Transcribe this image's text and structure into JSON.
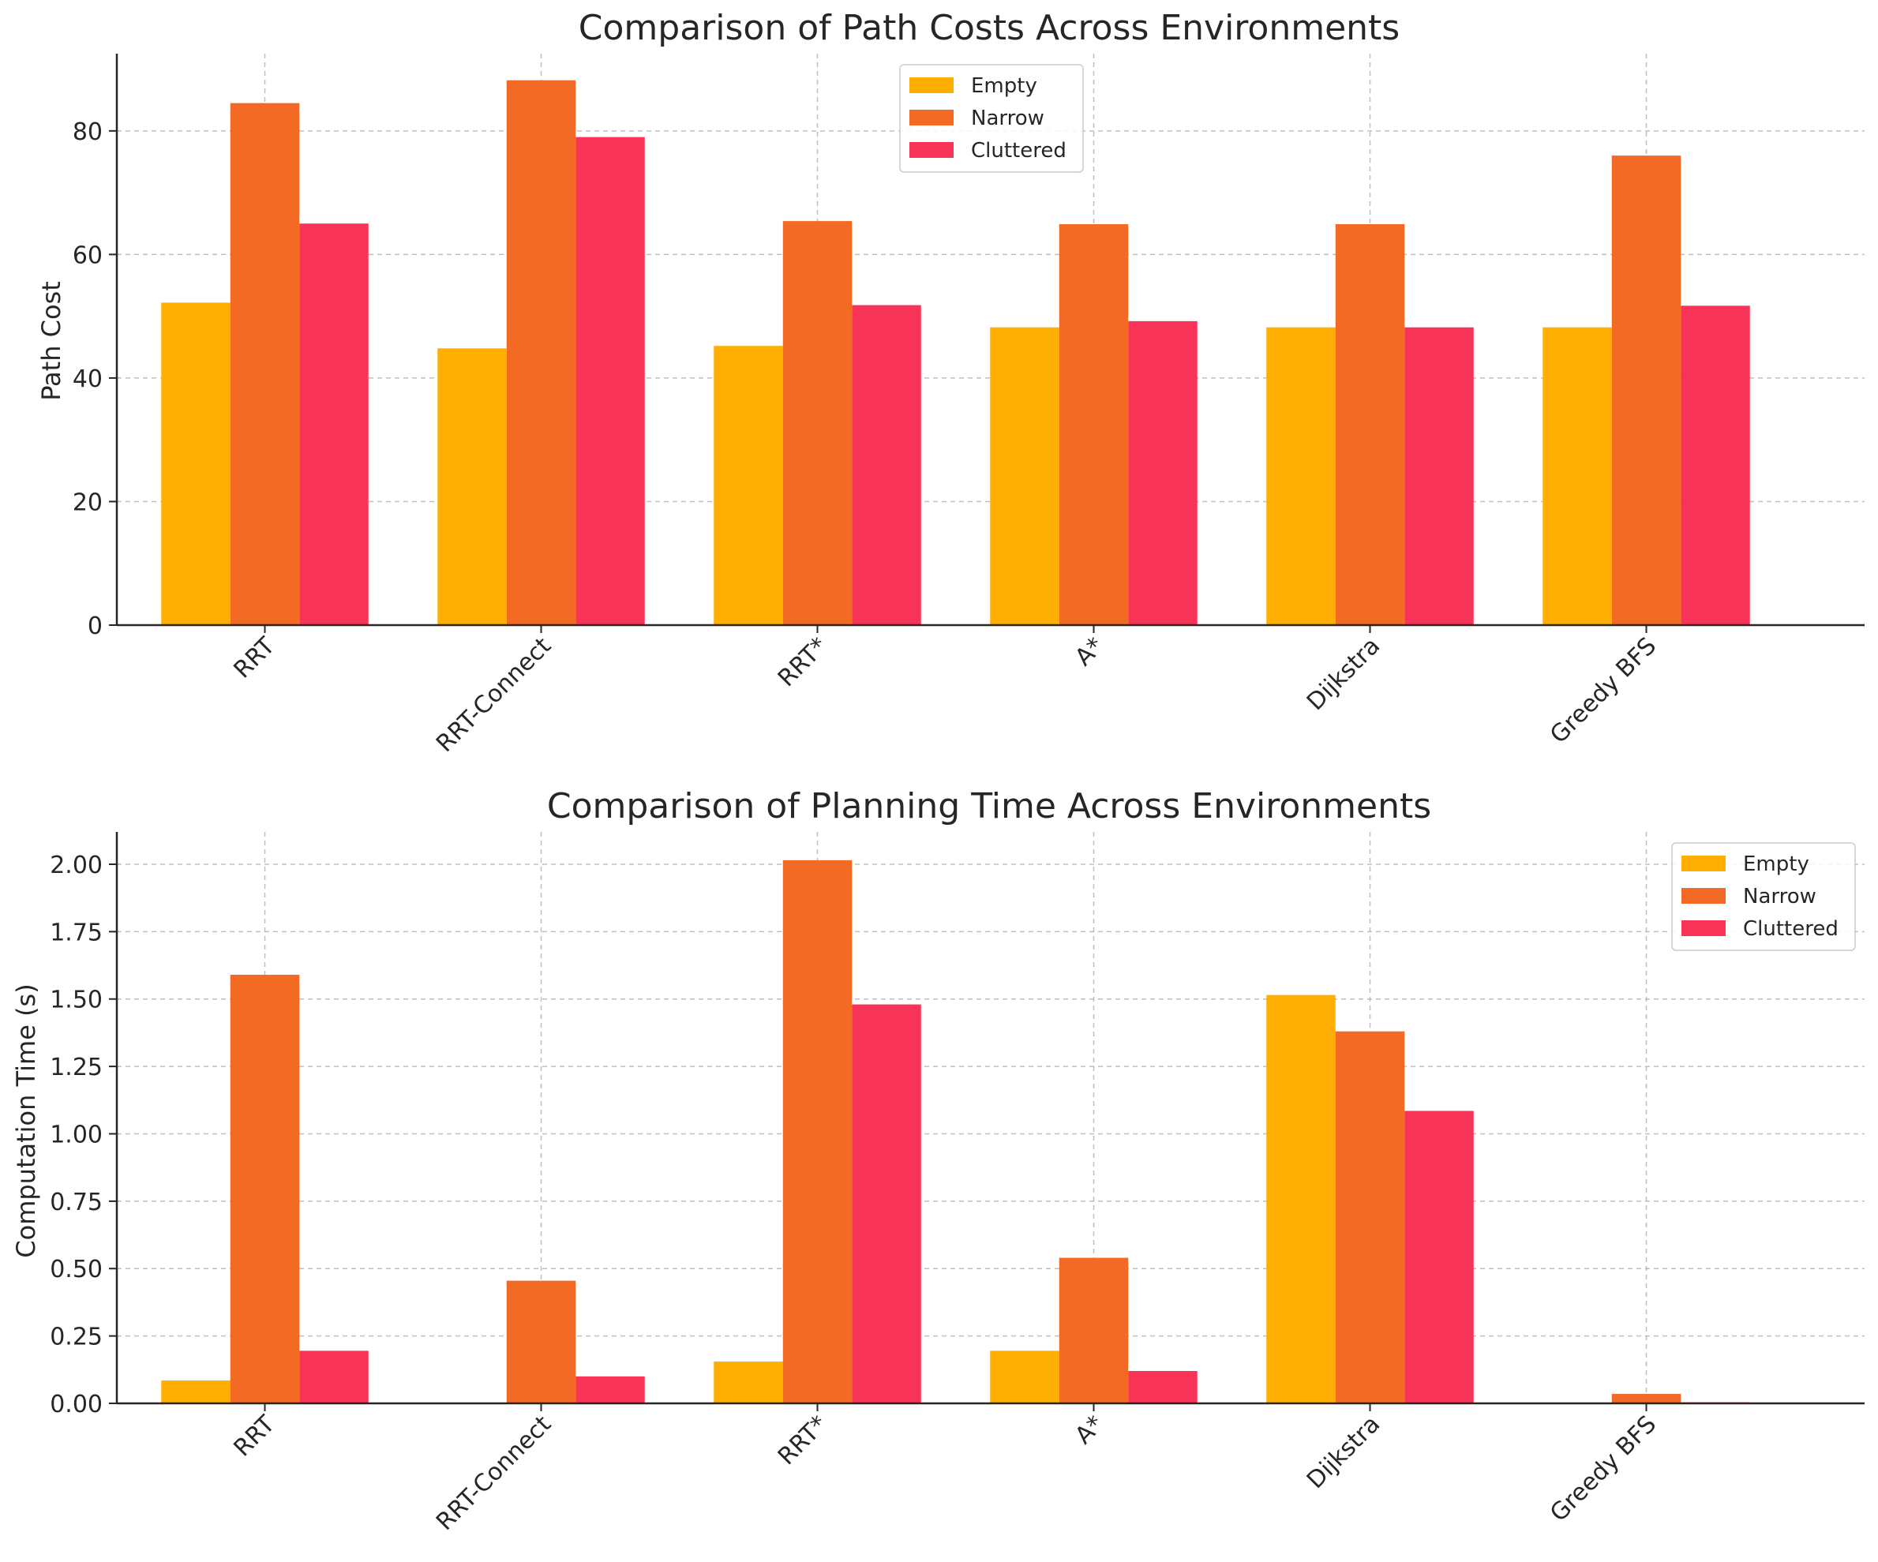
{
  "chart_data": [
    {
      "type": "bar",
      "title": "Comparison of Path Costs Across Environments",
      "xlabel": "",
      "ylabel": "Path Cost",
      "categories": [
        "RRT",
        "RRT-Connect",
        "RRT*",
        "A*",
        "Dijkstra",
        "Greedy BFS"
      ],
      "series": [
        {
          "name": "Empty",
          "color": "#FFAE03",
          "values": [
            52.2,
            44.8,
            45.2,
            48.2,
            48.2,
            48.2
          ]
        },
        {
          "name": "Narrow",
          "color": "#F26A23",
          "values": [
            84.5,
            88.2,
            65.4,
            64.9,
            64.9,
            76.0
          ]
        },
        {
          "name": "Cluttered",
          "color": "#F73357",
          "values": [
            65.0,
            79.0,
            51.8,
            49.2,
            48.2,
            51.7
          ]
        }
      ],
      "ylim": [
        0,
        92.5
      ],
      "yticks": [
        0,
        20,
        40,
        60,
        80
      ],
      "ytick_labels": [
        "0",
        "20",
        "40",
        "60",
        "80"
      ],
      "grid": true,
      "legend_position": "top-center"
    },
    {
      "type": "bar",
      "title": "Comparison of Planning Time Across Environments",
      "xlabel": "",
      "ylabel": "Computation Time (s)",
      "categories": [
        "RRT",
        "RRT-Connect",
        "RRT*",
        "A*",
        "Dijkstra",
        "Greedy BFS"
      ],
      "series": [
        {
          "name": "Empty",
          "color": "#FFAE03",
          "values": [
            0.085,
            0.0,
            0.155,
            0.195,
            1.515,
            0.003
          ]
        },
        {
          "name": "Narrow",
          "color": "#F26A23",
          "values": [
            1.59,
            0.455,
            2.015,
            0.54,
            1.38,
            0.035
          ]
        },
        {
          "name": "Cluttered",
          "color": "#F73357",
          "values": [
            0.195,
            0.1,
            1.48,
            0.12,
            1.085,
            0.004
          ]
        }
      ],
      "ylim": [
        0,
        2.12
      ],
      "yticks": [
        0,
        0.25,
        0.5,
        0.75,
        1.0,
        1.25,
        1.5,
        1.75,
        2.0
      ],
      "ytick_labels": [
        "0.00",
        "0.25",
        "0.50",
        "0.75",
        "1.00",
        "1.25",
        "1.50",
        "1.75",
        "2.00"
      ],
      "grid": true,
      "legend_position": "top-right"
    }
  ]
}
